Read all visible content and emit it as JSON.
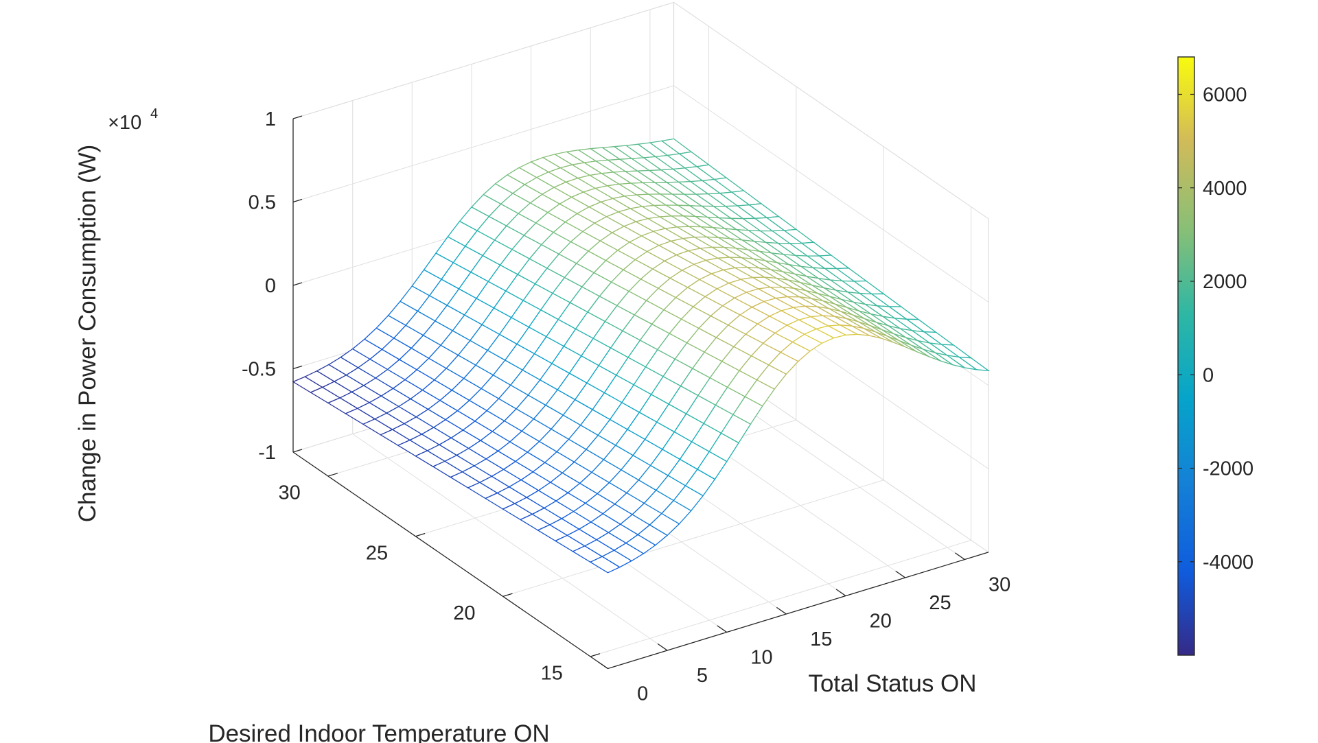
{
  "chart_data": {
    "type": "surface",
    "title": "",
    "xlabel": "Total Status ON",
    "ylabel": "Desired Indoor Temperature ON",
    "zlabel": "Change in Power Consumption (W)",
    "z_exponent_label": "×10",
    "z_exponent_power": "4",
    "x_ticks": [
      "0",
      "5",
      "10",
      "15",
      "20",
      "25",
      "30"
    ],
    "y_ticks": [
      "15",
      "20",
      "25",
      "30"
    ],
    "z_ticks": [
      "-1",
      "-0.5",
      "0",
      "0.5",
      "1"
    ],
    "xlim": [
      0,
      30
    ],
    "ylim": [
      15,
      30
    ],
    "zlim": [
      -10000,
      10000
    ],
    "grid": true,
    "colormap": "parula",
    "colorbar": {
      "ticks": [
        "-4000",
        "-2000",
        "0",
        "2000",
        "4000",
        "6000"
      ],
      "range": [
        -6000,
        6800
      ]
    },
    "surface": {
      "x_range": [
        0,
        32
      ],
      "y_range": [
        14,
        32
      ],
      "z_corner_x0_y32": -6000,
      "z_corner_x0_y14": -4500,
      "z_corner_x32_y14": 0,
      "z_peak": 6800,
      "z_peak_at_x": 19
    }
  }
}
